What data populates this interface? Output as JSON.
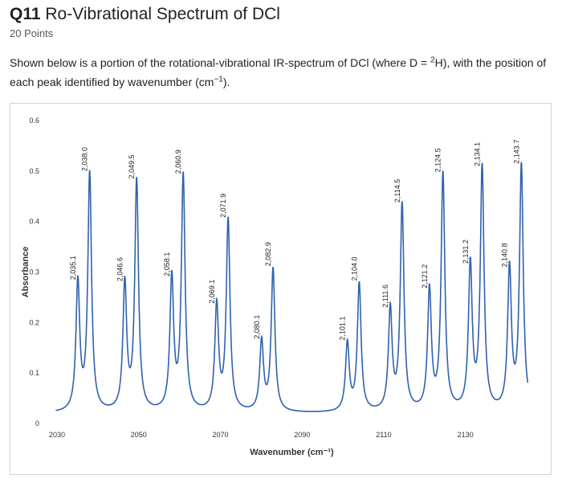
{
  "question": {
    "number": "Q11",
    "title": "Ro-Vibrational Spectrum of DCl",
    "points": "20 Points",
    "text_part1": "Shown below is a portion of the rotational-vibrational IR-spectrum of DCl (where D = ",
    "sup_mass": "2",
    "text_part2": "H), with the position of each peak identified by wavenumber (cm",
    "sup_unit": "−1",
    "text_part3": ")."
  },
  "chart_data": {
    "type": "line",
    "xlabel": "Wavenumber (cm⁻¹)",
    "ylabel": "Absorbance",
    "xlim": [
      2030,
      2145
    ],
    "ylim": [
      0,
      0.6
    ],
    "x_ticks": [
      "2030",
      "2050",
      "2070",
      "2090",
      "2110",
      "2130"
    ],
    "y_ticks": [
      "0",
      "0.1",
      "0.2",
      "0.3",
      "0.4",
      "0.5",
      "0.6"
    ],
    "line_color": "#2f62ad",
    "baseline": 0.02,
    "peaks": [
      {
        "label": "2,035.1",
        "x": 2035.1,
        "y": 0.275
      },
      {
        "label": "2,038.0",
        "x": 2038.0,
        "y": 0.49
      },
      {
        "label": "2,046.6",
        "x": 2046.6,
        "y": 0.272
      },
      {
        "label": "2,049.5",
        "x": 2049.5,
        "y": 0.475
      },
      {
        "label": "2,058.1",
        "x": 2058.1,
        "y": 0.282
      },
      {
        "label": "2,060.9",
        "x": 2060.9,
        "y": 0.485
      },
      {
        "label": "2,069.1",
        "x": 2069.1,
        "y": 0.228
      },
      {
        "label": "2,071.9",
        "x": 2071.9,
        "y": 0.398
      },
      {
        "label": "2,080.1",
        "x": 2080.1,
        "y": 0.158
      },
      {
        "label": "2,082.9",
        "x": 2082.9,
        "y": 0.302
      },
      {
        "label": "2,101.1",
        "x": 2101.1,
        "y": 0.155
      },
      {
        "label": "2,104.0",
        "x": 2104.0,
        "y": 0.273
      },
      {
        "label": "2,111.6",
        "x": 2111.6,
        "y": 0.22
      },
      {
        "label": "2,114.5",
        "x": 2114.5,
        "y": 0.428
      },
      {
        "label": "2,121.2",
        "x": 2121.2,
        "y": 0.258
      },
      {
        "label": "2,124.5",
        "x": 2124.5,
        "y": 0.488
      },
      {
        "label": "2,131.2",
        "x": 2131.2,
        "y": 0.307
      },
      {
        "label": "2,134.1",
        "x": 2134.1,
        "y": 0.5
      },
      {
        "label": "2,140.8",
        "x": 2140.8,
        "y": 0.3
      },
      {
        "label": "2,143.7",
        "x": 2143.7,
        "y": 0.505
      }
    ]
  }
}
